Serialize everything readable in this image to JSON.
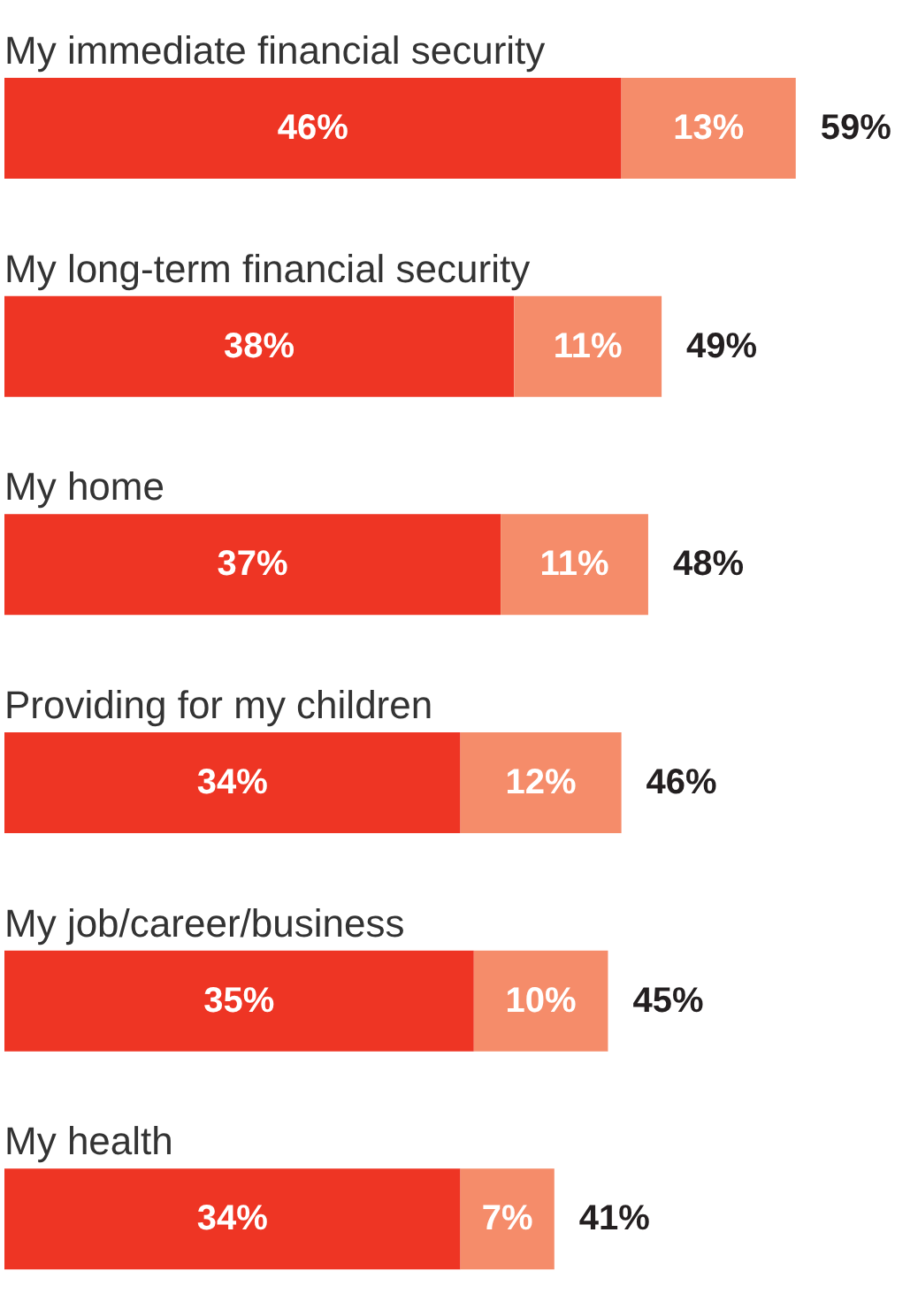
{
  "chart_data": {
    "type": "bar",
    "orientation": "horizontal",
    "stacked": true,
    "categories": [
      "My immediate financial security",
      "My long-term financial security",
      "My home",
      "Providing for my children",
      "My job/career/business",
      "My health"
    ],
    "series": [
      {
        "color": "#ee3524",
        "values": [
          46,
          38,
          37,
          34,
          35,
          34
        ],
        "value_labels": [
          "46%",
          "38%",
          "37%",
          "34%",
          "35%",
          "34%"
        ]
      },
      {
        "color": "#f58c6a",
        "values": [
          13,
          11,
          11,
          12,
          10,
          7
        ],
        "value_labels": [
          "13%",
          "11%",
          "11%",
          "12%",
          "10%",
          "7%"
        ]
      }
    ],
    "totals": [
      "59%",
      "49%",
      "48%",
      "46%",
      "45%",
      "41%"
    ],
    "grid": false,
    "tick_labels": false
  }
}
